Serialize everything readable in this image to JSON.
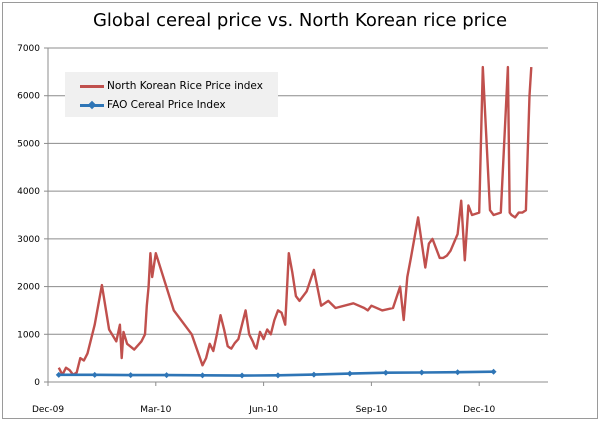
{
  "chart_data": {
    "type": "line",
    "title": "Global cereal price vs. North Korean rice price",
    "xlabel": "",
    "ylabel": "",
    "ylim": [
      0,
      7000
    ],
    "yticks": [
      "0",
      "1000",
      "2000",
      "3000",
      "4000",
      "5000",
      "6000",
      "7000"
    ],
    "ytick_values": [
      0,
      1000,
      2000,
      3000,
      4000,
      5000,
      6000,
      7000
    ],
    "xticks": [
      "Dec-09",
      "Mar-10",
      "Jun-10",
      "Sep-10",
      "Dec-10"
    ],
    "x_unit": "months since Dec-09",
    "xlim": [
      0,
      14
    ],
    "grid": true,
    "legend_position": "top-left",
    "series": [
      {
        "name": "North Korean Rice Price index",
        "color": "#c0504d",
        "marker": "none",
        "x": [
          0.3,
          0.4,
          0.5,
          0.6,
          0.7,
          0.8,
          0.9,
          1.0,
          1.1,
          1.3,
          1.5,
          1.7,
          1.9,
          2.0,
          2.05,
          2.1,
          2.2,
          2.4,
          2.6,
          2.7,
          2.75,
          2.8,
          2.85,
          2.9,
          3.0,
          3.5,
          4.0,
          4.3,
          4.4,
          4.5,
          4.6,
          4.7,
          4.8,
          4.9,
          5.0,
          5.05,
          5.1,
          5.2,
          5.3,
          5.4,
          5.5,
          5.6,
          5.7,
          5.75,
          5.8,
          5.9,
          6.0,
          6.1,
          6.2,
          6.3,
          6.4,
          6.5,
          6.6,
          6.7,
          6.8,
          6.9,
          7.0,
          7.2,
          7.4,
          7.6,
          7.8,
          8.0,
          8.5,
          8.8,
          8.9,
          9.0,
          9.3,
          9.6,
          9.8,
          9.9,
          10.0,
          10.1,
          10.3,
          10.5,
          10.6,
          10.7,
          10.8,
          10.9,
          11.0,
          11.1,
          11.2,
          11.4,
          11.5,
          11.6,
          11.7,
          11.8,
          12.0,
          12.1,
          12.3,
          12.4,
          12.6,
          12.8,
          12.85,
          12.9,
          13.0,
          13.1,
          13.2,
          13.3,
          13.4,
          13.45
        ],
        "values": [
          300,
          150,
          300,
          250,
          150,
          200,
          500,
          450,
          600,
          1200,
          2030,
          1100,
          850,
          1200,
          500,
          1050,
          800,
          680,
          850,
          1000,
          1600,
          2000,
          2700,
          2200,
          2700,
          1500,
          1000,
          350,
          500,
          800,
          650,
          1000,
          1400,
          1100,
          750,
          720,
          700,
          820,
          900,
          1200,
          1500,
          1000,
          850,
          750,
          700,
          1050,
          900,
          1100,
          1000,
          1300,
          1500,
          1450,
          1200,
          2700,
          2300,
          1800,
          1700,
          1900,
          2350,
          1600,
          1700,
          1550,
          1650,
          1550,
          1500,
          1600,
          1500,
          1550,
          2000,
          1300,
          2200,
          2600,
          3450,
          2400,
          2900,
          3000,
          2800,
          2600,
          2600,
          2650,
          2750,
          3100,
          3800,
          2550,
          3700,
          3500,
          3550,
          6600,
          3600,
          3500,
          3550,
          6600,
          3550,
          3500,
          3450,
          3550,
          3550,
          3600,
          6000,
          6600
        ],
        "note": "approximate reading; series is dense daily data"
      },
      {
        "name": "FAO Cereal Price Index",
        "color": "#2e75b6",
        "marker": "diamond",
        "x": [
          0.3,
          1.3,
          2.3,
          3.3,
          4.3,
          5.4,
          6.4,
          7.4,
          8.4,
          9.4,
          10.4,
          11.4,
          12.4
        ],
        "values": [
          150,
          150,
          145,
          145,
          140,
          135,
          140,
          155,
          175,
          195,
          200,
          205,
          215
        ]
      }
    ]
  }
}
